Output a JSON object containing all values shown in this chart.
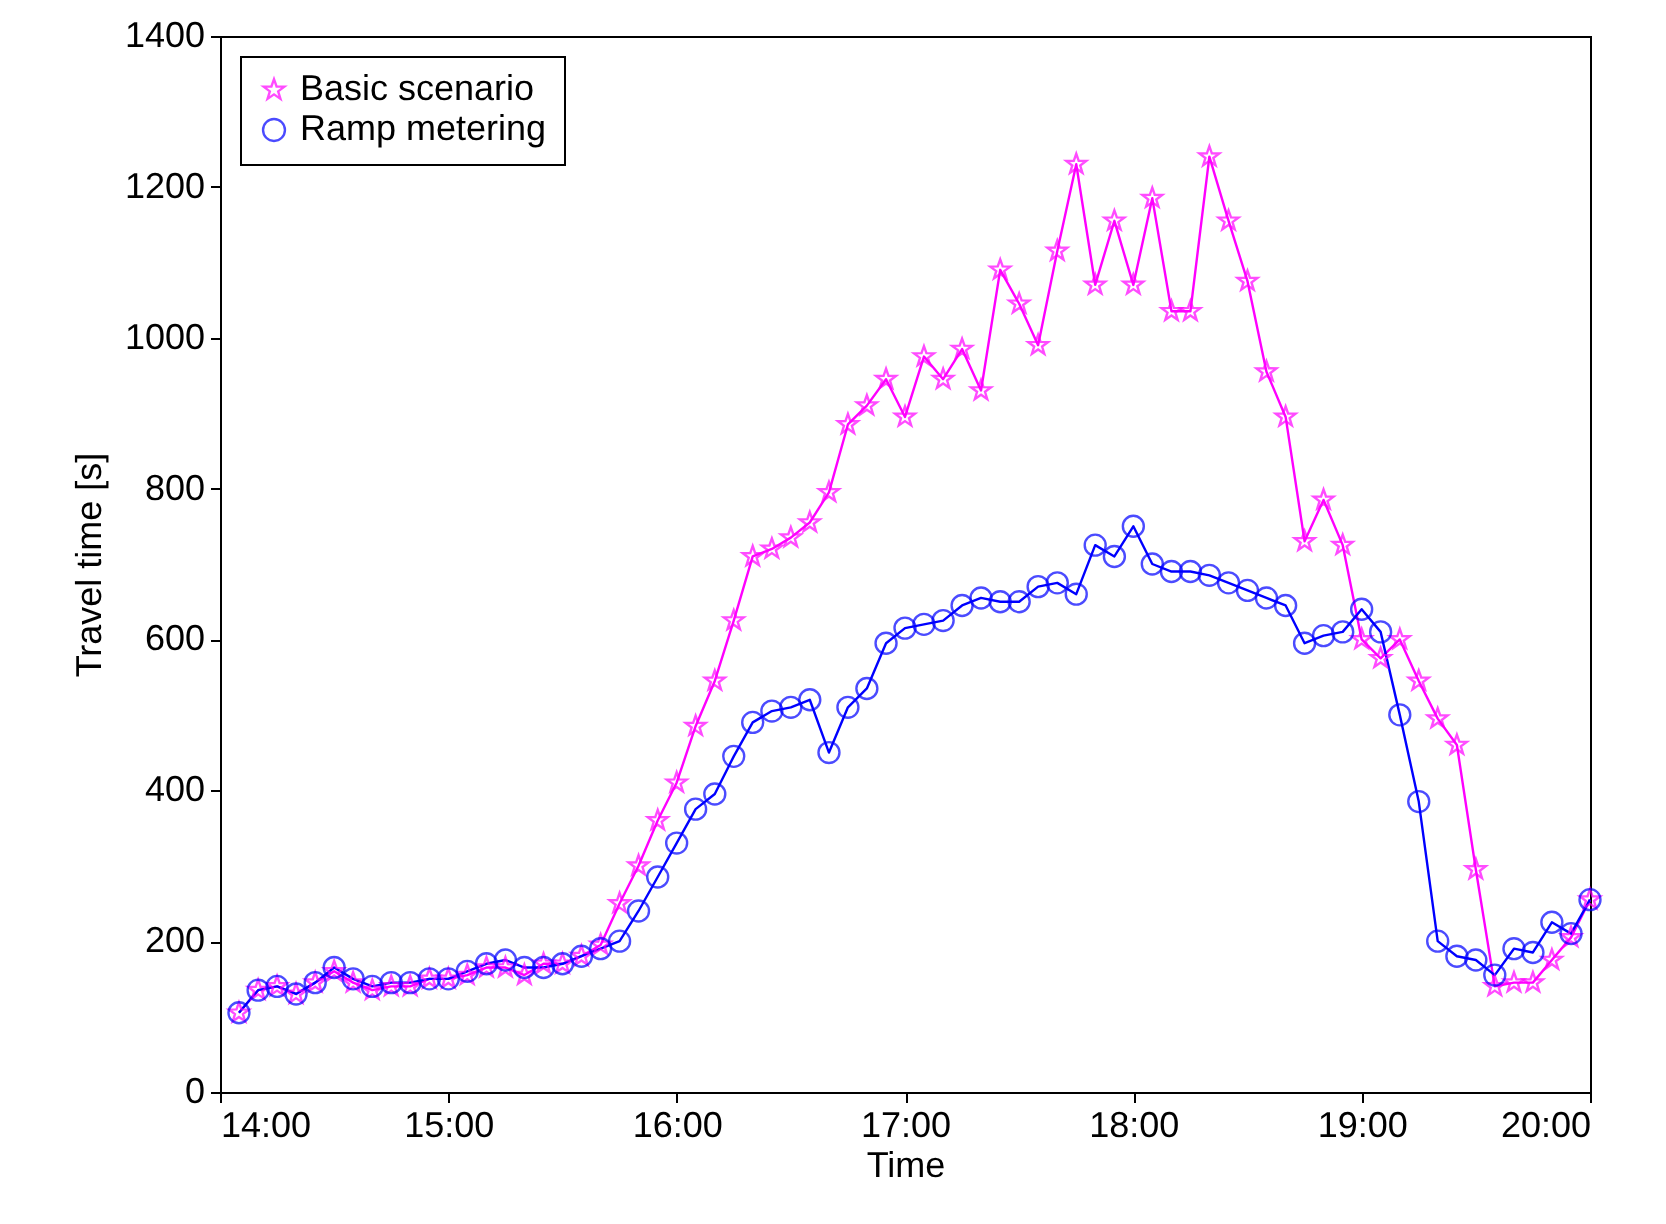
{
  "chart_data": {
    "type": "line",
    "xlabel": "Time",
    "ylabel": "Travel time [s]",
    "x": [
      14.083,
      14.167,
      14.25,
      14.333,
      14.417,
      14.5,
      14.583,
      14.667,
      14.75,
      14.833,
      14.917,
      15,
      15.083,
      15.167,
      15.25,
      15.333,
      15.417,
      15.5,
      15.583,
      15.667,
      15.75,
      15.833,
      15.917,
      16,
      16.083,
      16.167,
      16.25,
      16.333,
      16.417,
      16.5,
      16.583,
      16.667,
      16.75,
      16.833,
      16.917,
      17,
      17.083,
      17.167,
      17.25,
      17.333,
      17.417,
      17.5,
      17.583,
      17.667,
      17.75,
      17.833,
      17.917,
      18,
      18.083,
      18.167,
      18.25,
      18.333,
      18.417,
      18.5,
      18.583,
      18.667,
      18.75,
      18.833,
      18.917,
      19,
      19.083,
      19.167,
      19.25,
      19.333,
      19.417,
      19.5,
      19.583,
      19.667,
      19.75,
      19.833,
      19.917,
      20
    ],
    "series": [
      {
        "name": "Basic scenario",
        "color": "#ff00ff",
        "marker": "star",
        "values": [
          105,
          135,
          140,
          130,
          145,
          160,
          145,
          135,
          140,
          140,
          150,
          150,
          155,
          165,
          165,
          155,
          170,
          170,
          180,
          195,
          250,
          300,
          360,
          410,
          485,
          545,
          625,
          710,
          720,
          735,
          755,
          795,
          885,
          910,
          945,
          895,
          975,
          945,
          985,
          930,
          1090,
          1045,
          990,
          1115,
          1230,
          1070,
          1155,
          1070,
          1185,
          1035,
          1035,
          1240,
          1155,
          1075,
          955,
          895,
          730,
          785,
          725,
          600,
          575,
          600,
          545,
          495,
          460,
          295,
          140,
          145,
          145,
          175,
          205,
          255
        ]
      },
      {
        "name": "Ramp metering",
        "color": "#0000ff",
        "marker": "circle",
        "values": [
          105,
          135,
          140,
          130,
          145,
          165,
          150,
          140,
          145,
          145,
          150,
          150,
          160,
          170,
          175,
          165,
          165,
          170,
          180,
          190,
          200,
          240,
          285,
          330,
          375,
          395,
          445,
          490,
          505,
          510,
          520,
          450,
          510,
          535,
          595,
          615,
          620,
          625,
          645,
          655,
          650,
          650,
          670,
          675,
          660,
          725,
          710,
          750,
          700,
          690,
          690,
          685,
          675,
          665,
          655,
          645,
          595,
          605,
          610,
          640,
          610,
          500,
          385,
          200,
          180,
          175,
          155,
          190,
          185,
          225,
          210,
          255
        ]
      }
    ],
    "xlim": [
      14,
      20
    ],
    "xticks": [
      {
        "value": 14,
        "label": "14:00"
      },
      {
        "value": 15,
        "label": "15:00"
      },
      {
        "value": 16,
        "label": "16:00"
      },
      {
        "value": 17,
        "label": "17:00"
      },
      {
        "value": 18,
        "label": "18:00"
      },
      {
        "value": 19,
        "label": "19:00"
      },
      {
        "value": 20,
        "label": "20:00"
      }
    ],
    "ylim": [
      0,
      1400
    ],
    "yticks": [
      0,
      200,
      400,
      600,
      800,
      1000,
      1200,
      1400
    ],
    "legend": "top left",
    "line_style": "solid"
  }
}
